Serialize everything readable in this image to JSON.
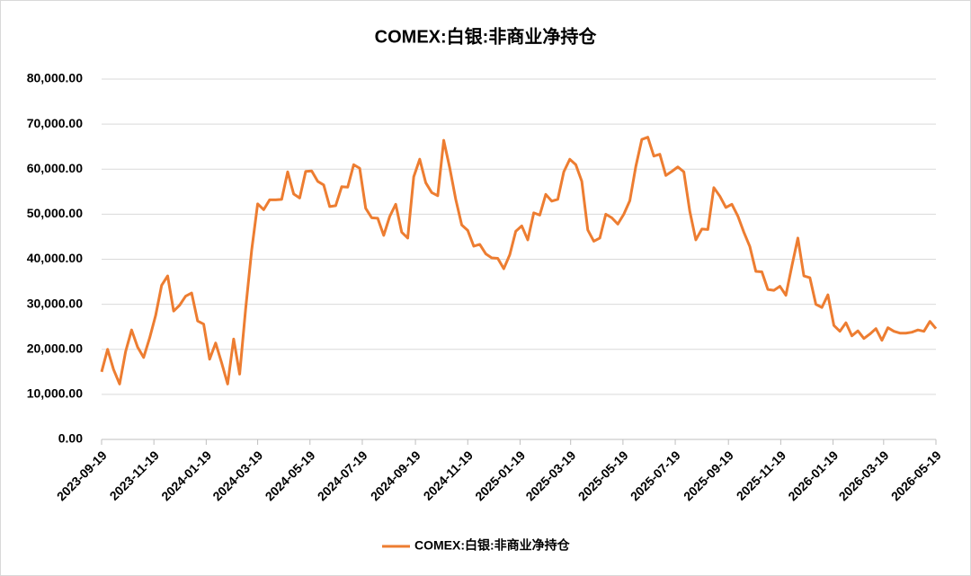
{
  "chart_data": {
    "type": "line",
    "title": "COMEX:白银:非商业净持仓",
    "x": [
      "2023-09-19",
      "2023-09-26",
      "2023-10-03",
      "2023-10-10",
      "2023-10-17",
      "2023-10-24",
      "2023-10-31",
      "2023-11-07",
      "2023-11-14",
      "2023-11-21",
      "2023-11-28",
      "2023-12-05",
      "2023-12-12",
      "2023-12-19",
      "2023-12-26",
      "2024-01-02",
      "2024-01-09",
      "2024-01-16",
      "2024-01-23",
      "2024-01-30",
      "2024-02-06",
      "2024-02-13",
      "2024-02-20",
      "2024-02-27",
      "2024-03-05",
      "2024-03-12",
      "2024-03-19",
      "2024-03-26",
      "2024-04-02",
      "2024-04-09",
      "2024-04-16",
      "2024-04-23",
      "2024-04-30",
      "2024-05-07",
      "2024-05-14",
      "2024-05-21",
      "2024-05-28",
      "2024-06-04",
      "2024-06-11",
      "2024-06-18",
      "2024-06-25",
      "2024-07-02",
      "2024-07-09",
      "2024-07-16",
      "2024-07-23",
      "2024-07-30",
      "2024-08-06",
      "2024-08-13",
      "2024-08-20",
      "2024-08-27",
      "2024-09-03",
      "2024-09-10",
      "2024-09-17",
      "2024-09-24",
      "2024-10-01",
      "2024-10-08",
      "2024-10-15",
      "2024-10-22",
      "2024-10-29",
      "2024-11-05",
      "2024-11-12",
      "2024-11-19",
      "2024-11-26",
      "2024-12-03",
      "2024-12-10",
      "2024-12-17",
      "2024-12-24",
      "2024-12-31",
      "2025-01-07",
      "2025-01-14",
      "2025-01-21",
      "2025-01-28",
      "2025-02-04",
      "2025-02-11",
      "2025-02-18",
      "2025-02-25",
      "2025-03-04",
      "2025-03-11",
      "2025-03-18",
      "2025-03-25",
      "2025-04-01",
      "2025-04-08",
      "2025-04-15",
      "2025-04-22",
      "2025-04-29",
      "2025-05-06",
      "2025-05-13",
      "2025-05-20",
      "2025-05-27",
      "2025-06-03",
      "2025-06-10",
      "2025-06-17",
      "2025-06-24",
      "2025-07-01",
      "2025-07-08",
      "2025-07-15",
      "2025-07-22",
      "2025-07-29",
      "2025-08-05",
      "2025-08-12",
      "2025-08-19",
      "2025-08-26",
      "2025-09-02",
      "2025-09-09",
      "2025-09-16",
      "2025-09-23",
      "2025-09-30",
      "2025-10-07",
      "2025-10-14",
      "2025-10-21",
      "2025-10-28",
      "2025-11-04",
      "2025-11-11",
      "2025-11-18",
      "2025-11-25",
      "2025-12-02",
      "2025-12-09",
      "2025-12-16",
      "2025-12-23",
      "2025-12-30",
      "2026-01-06",
      "2026-01-13",
      "2026-01-20",
      "2026-01-27",
      "2026-02-03",
      "2026-02-10",
      "2026-02-17",
      "2026-02-24",
      "2026-03-03",
      "2026-03-10",
      "2026-03-17",
      "2026-03-24",
      "2026-03-31",
      "2026-04-07",
      "2026-04-14",
      "2026-04-21",
      "2026-04-28",
      "2026-05-05",
      "2026-05-12",
      "2026-05-19"
    ],
    "series": [
      {
        "name": "COMEX:白银:非商业净持仓",
        "color": "#ed7d31",
        "values": [
          15000,
          20000,
          15500,
          12300,
          19500,
          24300,
          20500,
          18200,
          22500,
          27500,
          34200,
          36300,
          28500,
          29800,
          31800,
          32500,
          26300,
          25600,
          17800,
          21400,
          17000,
          12300,
          22300,
          14500,
          29000,
          42000,
          52300,
          51000,
          53200,
          53200,
          53300,
          59400,
          54500,
          53600,
          59500,
          59600,
          57300,
          56500,
          51700,
          51900,
          56100,
          56000,
          61000,
          60200,
          51300,
          49200,
          49100,
          45300,
          49500,
          52200,
          46000,
          44700,
          58300,
          62200,
          57000,
          54800,
          54100,
          66400,
          60300,
          53300,
          47600,
          46400,
          42900,
          43300,
          41200,
          40300,
          40200,
          37900,
          41000,
          46200,
          47400,
          44300,
          50300,
          49800,
          54400,
          52900,
          53300,
          59400,
          62200,
          61000,
          57300,
          46500,
          44000,
          44700,
          50000,
          49200,
          47800,
          50000,
          53000,
          60600,
          66600,
          67100,
          62900,
          63300,
          58600,
          59500,
          60500,
          59400,
          50600,
          44300,
          46700,
          46600,
          55900,
          54000,
          51500,
          52200,
          49600,
          46000,
          42800,
          37300,
          37200,
          33300,
          33100,
          34000,
          32000,
          38500,
          44700,
          36300,
          35900,
          30000,
          29300,
          32100,
          25300,
          24000,
          25900,
          23000,
          24100,
          22400,
          23400,
          24600,
          22000,
          24800,
          24000,
          23600,
          23600,
          23800,
          24300,
          24000,
          26200,
          24600
        ]
      }
    ],
    "xlim": [
      "2023-09-19",
      "2026-05-19"
    ],
    "xticks": [
      "2023-09-19",
      "2023-11-19",
      "2024-01-19",
      "2024-03-19",
      "2024-05-19",
      "2024-07-19",
      "2024-09-19",
      "2024-11-19",
      "2025-01-19",
      "2025-03-19",
      "2025-05-19",
      "2025-07-19",
      "2025-09-19",
      "2025-11-19",
      "2026-01-19",
      "2026-03-19",
      "2026-05-19"
    ],
    "ylim": [
      0,
      80000
    ],
    "yticks": [
      {
        "value": 0,
        "label": "0.00"
      },
      {
        "value": 10000,
        "label": "10,000.00"
      },
      {
        "value": 20000,
        "label": "20,000.00"
      },
      {
        "value": 30000,
        "label": "30,000.00"
      },
      {
        "value": 40000,
        "label": "40,000.00"
      },
      {
        "value": 50000,
        "label": "50,000.00"
      },
      {
        "value": 60000,
        "label": "60,000.00"
      },
      {
        "value": 70000,
        "label": "70,000.00"
      },
      {
        "value": 80000,
        "label": "80,000.00"
      }
    ],
    "grid": true,
    "legend": "bottom"
  }
}
